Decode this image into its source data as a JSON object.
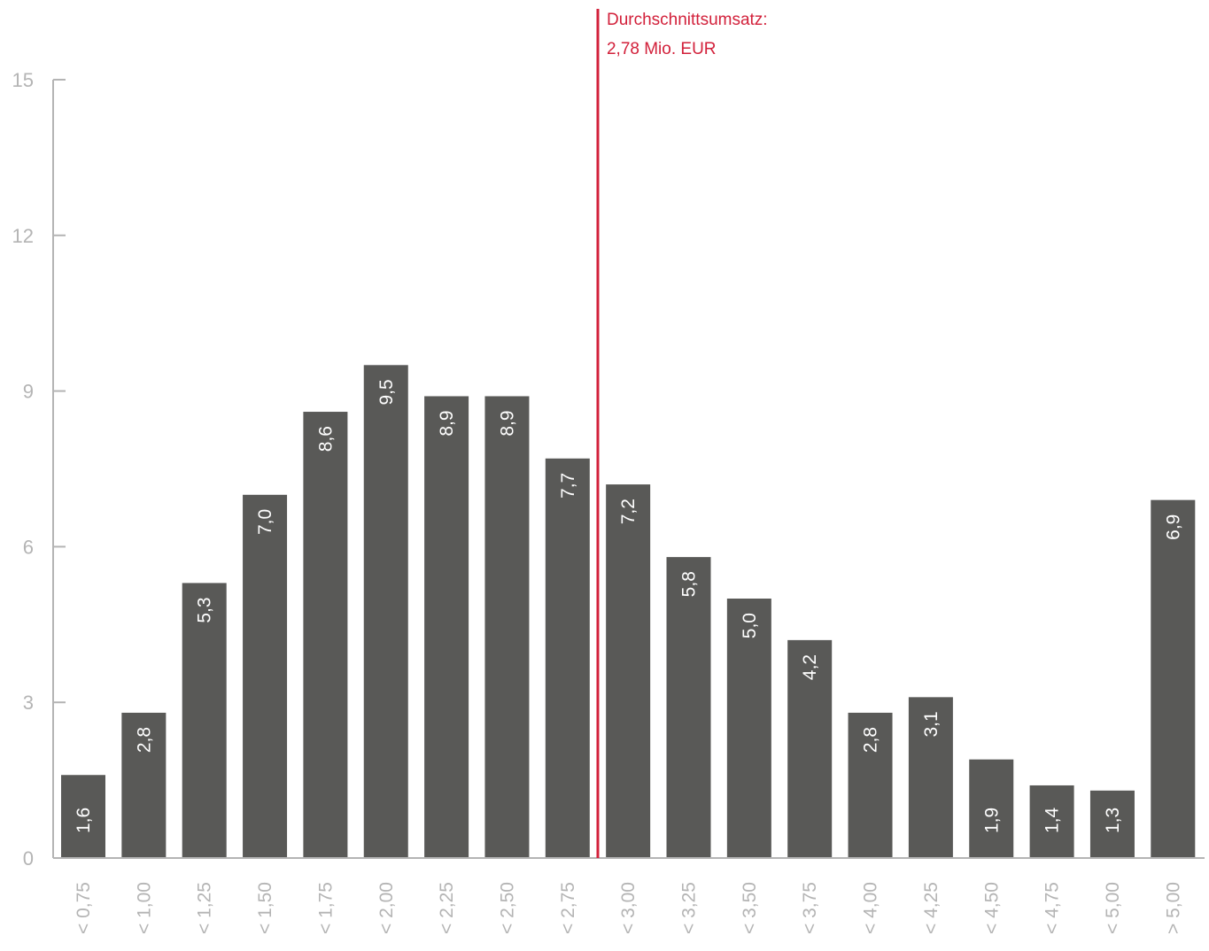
{
  "chart_data": {
    "type": "bar",
    "categories": [
      "< 0,75",
      "< 1,00",
      "< 1,25",
      "< 1,50",
      "< 1,75",
      "< 2,00",
      "< 2,25",
      "< 2,50",
      "< 2,75",
      "< 3,00",
      "< 3,25",
      "< 3,50",
      "< 3,75",
      "< 4,00",
      "< 4,25",
      "< 4,50",
      "< 4,75",
      "< 5,00",
      "> 5,00"
    ],
    "values": [
      1.6,
      2.8,
      5.3,
      7.0,
      8.6,
      9.5,
      8.9,
      8.9,
      7.7,
      7.2,
      5.8,
      5.0,
      4.2,
      2.8,
      3.1,
      1.9,
      1.4,
      1.3,
      6.9
    ],
    "value_labels": [
      "1,6",
      "2,8",
      "5,3",
      "7,0",
      "8,6",
      "9,5",
      "8,9",
      "8,9",
      "7,7",
      "7,2",
      "5,8",
      "5,0",
      "4,2",
      "2,8",
      "3,1",
      "1,9",
      "1,4",
      "1,3",
      "6,9"
    ],
    "yticks": [
      0,
      3,
      6,
      9,
      12,
      15
    ],
    "ylim": [
      0,
      15
    ],
    "grid": false,
    "legend": "none",
    "annotation": {
      "line1": "Durchschnittsumsatz:",
      "line2": "2,78 Mio. EUR",
      "position_between_categories": [
        8,
        9
      ]
    },
    "colors": {
      "bar": "#595957",
      "axis": "#b4b4b4",
      "annotation": "#d2203a",
      "value_label": "#ffffff"
    }
  }
}
